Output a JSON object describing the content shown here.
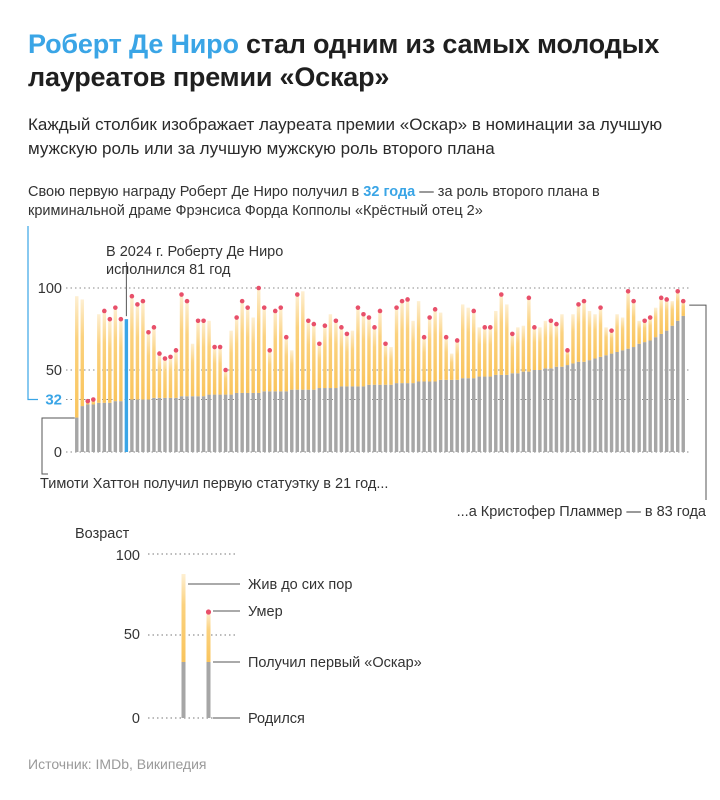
{
  "title": {
    "accent": "Роберт Де Ниро",
    "rest": " стал одним из самых молодых лауреатов премии «Оскар»"
  },
  "subtitle": "Каждый столбик изображает лауреата премии «Оскар» в номинации за лучшую мужскую роль или за лучшую мужскую роль второго плана",
  "annotations": {
    "deniro_pre": "Свою первую награду Роберт Де Ниро получил в ",
    "deniro_hl": "32 года",
    "deniro_post": " — за роль второго плана в криминальной драме Фрэнсиса Форда Копполы «Крёстный отец 2»",
    "deniro_2024_line1": "В 2024 г. Роберту Де Ниро",
    "deniro_2024_line2": "исполнился 81 год",
    "hutton": "Тимоти Хаттон получил первую статуэтку в 21 год...",
    "plummer": "...а Кристофер Пламмер — в 83 года"
  },
  "legend": {
    "axis_title": "Возраст",
    "ticks": [
      "100",
      "50",
      "0"
    ],
    "alive": "Жив до сих пор",
    "dead": "Умер",
    "first_oscar": "Получил первый «Оскар»",
    "born": "Родился"
  },
  "source": "Источник: IMDb, Википедия",
  "colors": {
    "accent": "#3aa5e6",
    "gray_bar": "#a6a6a6",
    "alive_bar": "#fbd27f",
    "dead_dot": "#e8506a"
  },
  "chart_data": {
    "type": "bar",
    "description_x": "laureates sorted by age at first Oscar",
    "ylim": [
      0,
      100
    ],
    "yticks": [
      "100",
      "50",
      "0"
    ],
    "highlight_tick": "32",
    "highlight_index": 9,
    "first_award_age": [
      21,
      28,
      29,
      29,
      30,
      30,
      30,
      31,
      31,
      32,
      32,
      32,
      32,
      32,
      33,
      33,
      33,
      33,
      33,
      34,
      34,
      34,
      34,
      34,
      35,
      35,
      35,
      35,
      35,
      36,
      36,
      36,
      36,
      36,
      37,
      37,
      37,
      37,
      37,
      38,
      38,
      38,
      38,
      38,
      39,
      39,
      39,
      39,
      40,
      40,
      40,
      40,
      40,
      41,
      41,
      41,
      41,
      41,
      42,
      42,
      42,
      42,
      43,
      43,
      43,
      43,
      44,
      44,
      44,
      44,
      45,
      45,
      45,
      46,
      46,
      46,
      47,
      47,
      47,
      48,
      48,
      49,
      49,
      50,
      50,
      51,
      51,
      52,
      52,
      53,
      54,
      55,
      55,
      56,
      57,
      58,
      59,
      60,
      61,
      62,
      63,
      64,
      66,
      67,
      68,
      70,
      72,
      74,
      77,
      80,
      83
    ],
    "final_age": [
      95,
      93,
      31,
      32,
      84,
      86,
      81,
      88,
      81,
      81,
      95,
      90,
      92,
      73,
      76,
      60,
      57,
      58,
      62,
      96,
      92,
      66,
      80,
      80,
      80,
      64,
      64,
      50,
      74,
      82,
      92,
      88,
      82,
      100,
      88,
      62,
      86,
      88,
      70,
      62,
      96,
      98,
      80,
      78,
      66,
      77,
      84,
      80,
      76,
      72,
      74,
      88,
      84,
      82,
      76,
      86,
      66,
      64,
      88,
      92,
      93,
      80,
      92,
      70,
      82,
      87,
      85,
      70,
      60,
      68,
      90,
      88,
      86,
      76,
      76,
      76,
      86,
      96,
      90,
      72,
      76,
      77,
      94,
      76,
      76,
      80,
      80,
      78,
      84,
      62,
      84,
      90,
      92,
      86,
      84,
      88,
      76,
      74,
      84,
      82,
      98,
      92,
      80,
      80,
      82,
      88,
      94,
      93,
      92,
      98,
      92
    ],
    "deceased": [
      false,
      false,
      true,
      true,
      false,
      true,
      true,
      true,
      true,
      false,
      true,
      true,
      true,
      true,
      true,
      true,
      true,
      true,
      true,
      true,
      true,
      false,
      true,
      true,
      false,
      true,
      true,
      true,
      false,
      true,
      true,
      true,
      false,
      true,
      true,
      true,
      true,
      true,
      true,
      false,
      true,
      false,
      true,
      true,
      true,
      true,
      false,
      true,
      true,
      true,
      false,
      true,
      true,
      true,
      true,
      true,
      true,
      false,
      true,
      true,
      true,
      false,
      false,
      true,
      true,
      true,
      false,
      true,
      false,
      true,
      false,
      false,
      true,
      false,
      true,
      true,
      false,
      true,
      false,
      true,
      false,
      false,
      true,
      true,
      false,
      false,
      true,
      true,
      false,
      true,
      false,
      true,
      true,
      false,
      false,
      true,
      false,
      true,
      false,
      false,
      true,
      true,
      false,
      true,
      true,
      false,
      true,
      true,
      false,
      true,
      true
    ]
  }
}
